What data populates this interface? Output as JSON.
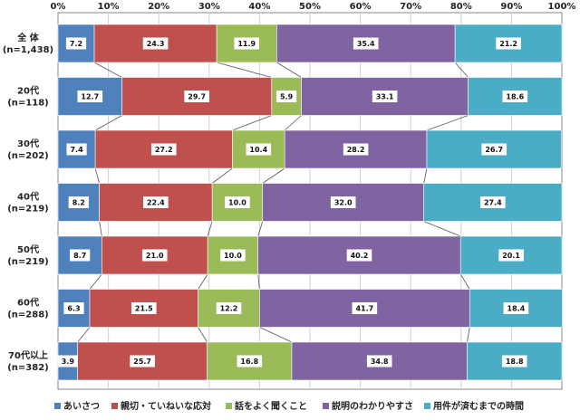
{
  "chart_data": {
    "type": "bar",
    "orientation": "horizontal",
    "stacked": "percent",
    "xlim": [
      0,
      100
    ],
    "x_ticks": [
      "0%",
      "10%",
      "20%",
      "30%",
      "40%",
      "50%",
      "60%",
      "70%",
      "80%",
      "90%",
      "100%"
    ],
    "categories": [
      {
        "name": "全 体",
        "n": "(n=1,438)"
      },
      {
        "name": "20代",
        "n": "(n=118)"
      },
      {
        "name": "30代",
        "n": "(n=202)"
      },
      {
        "name": "40代",
        "n": "(n=219)"
      },
      {
        "name": "50代",
        "n": "(n=219)"
      },
      {
        "name": "60代",
        "n": "(n=288)"
      },
      {
        "name": "70代以上",
        "n": "(n=382)"
      }
    ],
    "series": [
      {
        "name": "あいさつ",
        "color": "#4f81bd",
        "values": [
          7.2,
          12.7,
          7.4,
          8.2,
          8.7,
          6.3,
          3.9
        ]
      },
      {
        "name": "親切・ていねいな応対",
        "color": "#c0504d",
        "values": [
          24.3,
          29.7,
          27.2,
          22.4,
          21.0,
          21.5,
          25.7
        ]
      },
      {
        "name": "話をよく聞くこと",
        "color": "#9bbb59",
        "values": [
          11.9,
          5.9,
          10.4,
          10.0,
          10.0,
          12.2,
          16.8
        ]
      },
      {
        "name": "説明のわかりやすさ",
        "color": "#8064a2",
        "values": [
          35.4,
          33.1,
          28.2,
          32.0,
          40.2,
          41.7,
          34.8
        ]
      },
      {
        "name": "用件が済むまでの時間",
        "color": "#4bacc6",
        "values": [
          21.2,
          18.6,
          26.7,
          27.4,
          20.1,
          18.4,
          18.8
        ]
      }
    ],
    "series_lines": true,
    "grid": true,
    "legend_position": "bottom"
  }
}
